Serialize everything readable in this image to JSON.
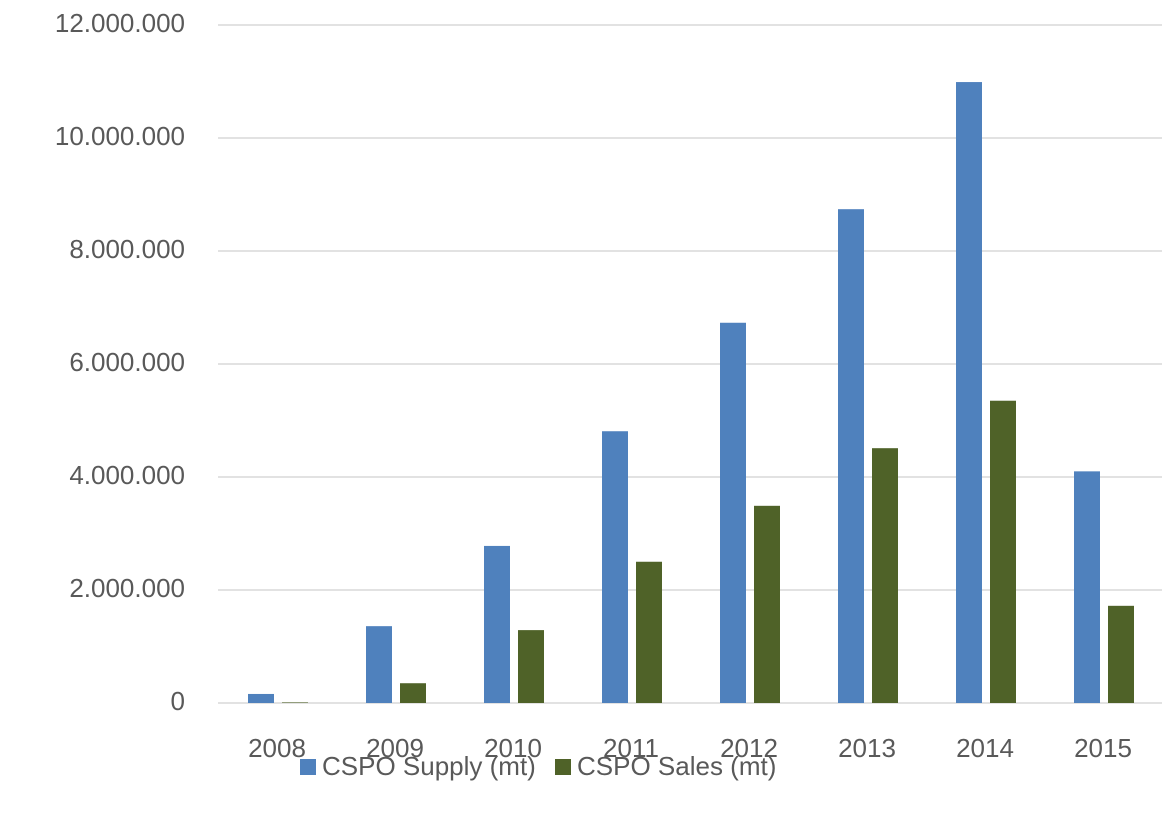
{
  "chart_data": {
    "type": "bar",
    "categories": [
      "2008",
      "2009",
      "2010",
      "2011",
      "2012",
      "2013",
      "2014",
      "2015"
    ],
    "series": [
      {
        "name": "CSPO Supply (mt)",
        "color": "#4f81bd",
        "values": [
          160000,
          1360000,
          2780000,
          4810000,
          6730000,
          8740000,
          10990000,
          4100000
        ]
      },
      {
        "name": "CSPO Sales (mt)",
        "color": "#4f6228",
        "values": [
          10000,
          350000,
          1290000,
          2500000,
          3490000,
          4510000,
          5350000,
          1720000
        ]
      }
    ],
    "ylim": [
      0,
      12000000
    ],
    "yticks": [
      0,
      {
        "value": 2000000,
        "label": "2.000.000"
      },
      {
        "value": 4000000,
        "label": "4.000.000"
      },
      {
        "value": 6000000,
        "label": "6.000.000"
      },
      {
        "value": 8000000,
        "label": "8.000.000"
      },
      {
        "value": 10000000,
        "label": "10.000.000"
      },
      {
        "value": 12000000,
        "label": "12.000.000"
      }
    ],
    "grid": true,
    "legend": "bottom"
  }
}
